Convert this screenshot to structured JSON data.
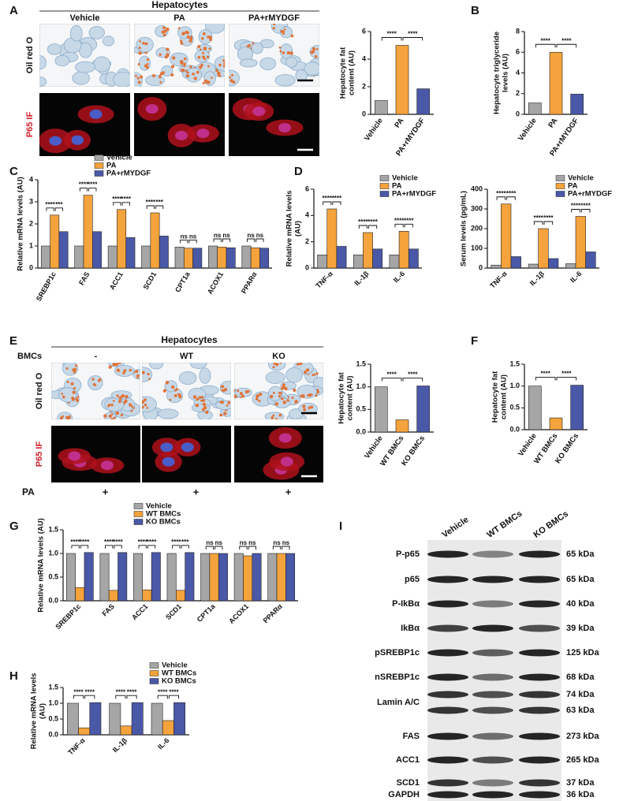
{
  "panel_labels": [
    "A",
    "B",
    "C",
    "D",
    "E",
    "F",
    "G",
    "H",
    "I"
  ],
  "images": [
    {
      "title": "Hepatocytes",
      "columns": [
        "Vehicle",
        "PA",
        "PA+rMYDGF"
      ],
      "rows": [
        "Oil red O",
        "P65 IF"
      ]
    },
    {
      "title": "Hepatocytes",
      "group_label": "BMCs",
      "columns": [
        "-",
        "WT",
        "KO"
      ],
      "rows": [
        "Oil red O",
        "P65 IF"
      ],
      "treatment_label": "PA",
      "treatment": [
        "+",
        "+",
        "+"
      ]
    }
  ],
  "blot": {
    "lanes": [
      "Vehicle",
      "WT BMCs",
      "KO BMCs"
    ],
    "rows": [
      {
        "protein": "P-p65",
        "sizes": [
          "65 kDa"
        ]
      },
      {
        "protein": "p65",
        "sizes": [
          "65 kDa"
        ]
      },
      {
        "protein": "P-IkBα",
        "sizes": [
          "40 kDa"
        ]
      },
      {
        "protein": "IkBα",
        "sizes": [
          "39 kDa"
        ]
      },
      {
        "protein": "pSREBP1c",
        "sizes": [
          "125 kDa"
        ]
      },
      {
        "protein": "nSREBP1c",
        "sizes": [
          "68 kDa"
        ]
      },
      {
        "protein": "Lamin A/C",
        "sizes": [
          "74 kDa",
          "63 kDa"
        ]
      },
      {
        "protein": "FAS",
        "sizes": [
          "273 kDa"
        ]
      },
      {
        "protein": "ACC1",
        "sizes": [
          "265 kDa"
        ]
      },
      {
        "protein": "SCD1",
        "sizes": [
          "37 kDa"
        ]
      },
      {
        "protein": "GAPDH",
        "sizes": [
          "36 kDa"
        ]
      }
    ]
  },
  "chart_data": [
    {
      "type": "bar",
      "ylabel": [
        "Hepatocyte fat",
        "content (AU)"
      ],
      "categories": [
        "Vehicle",
        "PA",
        "PA+rMYDGF"
      ],
      "values": [
        1.0,
        5.0,
        1.85
      ],
      "colors": [
        "#a6a6a6",
        "#f5a33c",
        "#4a58a8"
      ],
      "ylim": [
        0,
        6
      ],
      "yticks": [
        0,
        2,
        4,
        6
      ],
      "annotations": [
        "****",
        "****"
      ]
    },
    {
      "type": "bar",
      "ylabel": [
        "Hepatocyte triglyceride",
        "levels (AU)"
      ],
      "categories": [
        "Vehicle",
        "PA",
        "PA+rMYDGF"
      ],
      "values": [
        1.1,
        6.0,
        1.95
      ],
      "colors": [
        "#a6a6a6",
        "#f5a33c",
        "#4a58a8"
      ],
      "ylim": [
        0,
        8
      ],
      "yticks": [
        0,
        2,
        4,
        6,
        8
      ],
      "annotations": [
        "****",
        "****"
      ]
    },
    {
      "type": "grouped-bar",
      "ylabel": [
        "Relative mRNA levels (AU)"
      ],
      "categories": [
        "SREBP1c",
        "FAS",
        "ACC1",
        "SCD1",
        "CPT1a",
        "ACOX1",
        "PPARα"
      ],
      "series": [
        {
          "name": "Vehicle",
          "color": "#a6a6a6",
          "values": [
            1.0,
            1.0,
            1.0,
            1.0,
            0.95,
            1.0,
            1.0
          ]
        },
        {
          "name": "PA",
          "color": "#f5a33c",
          "values": [
            2.4,
            3.3,
            2.65,
            2.5,
            0.9,
            0.95,
            0.92
          ]
        },
        {
          "name": "PA+rMYDGF",
          "color": "#4a58a8",
          "values": [
            1.65,
            1.65,
            1.38,
            1.45,
            0.9,
            0.92,
            0.9
          ]
        }
      ],
      "ylim": [
        0,
        4
      ],
      "yticks": [
        0,
        1,
        2,
        3,
        4
      ],
      "annotations": [
        [
          "****",
          "***"
        ],
        [
          "****",
          "****"
        ],
        [
          "****",
          "****"
        ],
        [
          "****",
          "***"
        ],
        [
          "ns",
          "ns"
        ],
        [
          "ns",
          "ns"
        ],
        [
          "ns",
          "ns"
        ]
      ]
    },
    {
      "type": "grouped-bar",
      "ylabel": [
        "Relative mRNA levels",
        "(AU)"
      ],
      "categories": [
        "TNF-α",
        "IL-1β",
        "IL-6"
      ],
      "series": [
        {
          "name": "Vehicle",
          "color": "#a6a6a6",
          "values": [
            1.0,
            1.0,
            1.0
          ]
        },
        {
          "name": "PA",
          "color": "#f5a33c",
          "values": [
            4.5,
            2.7,
            2.8
          ]
        },
        {
          "name": "PA+rMYDGF",
          "color": "#4a58a8",
          "values": [
            1.65,
            1.45,
            1.45
          ]
        }
      ],
      "ylim": [
        0,
        6
      ],
      "yticks": [
        0,
        2,
        4,
        6
      ],
      "annotations": [
        [
          "****",
          "****"
        ],
        [
          "****",
          "****"
        ],
        [
          "****",
          "****"
        ]
      ]
    },
    {
      "type": "grouped-bar",
      "ylabel": [
        "Serum levels (pg/mL)"
      ],
      "categories": [
        "TNF-α",
        "IL-1β",
        "IL-6"
      ],
      "series": [
        {
          "name": "Vehicle",
          "color": "#a6a6a6",
          "values": [
            15,
            20,
            22
          ]
        },
        {
          "name": "PA",
          "color": "#f5a33c",
          "values": [
            325,
            200,
            262
          ]
        },
        {
          "name": "PA+rMYDGF",
          "color": "#4a58a8",
          "values": [
            58,
            48,
            82
          ]
        }
      ],
      "ylim": [
        0,
        400
      ],
      "yticks": [
        0,
        100,
        200,
        300,
        400
      ],
      "annotations": [
        [
          "****",
          "****"
        ],
        [
          "****",
          "****"
        ],
        [
          "****",
          "****"
        ]
      ]
    },
    {
      "type": "bar",
      "ylabel": [
        "Hepatocyte fat",
        "content (AU)"
      ],
      "categories": [
        "Vehicle",
        "WT BMCs",
        "KO BMCs"
      ],
      "values": [
        1.0,
        0.27,
        1.02
      ],
      "colors": [
        "#a6a6a6",
        "#f5a33c",
        "#4a58a8"
      ],
      "ylim": [
        0,
        1.5
      ],
      "yticks": [
        {
          "value": 0,
          "label": "0.0"
        },
        0.5,
        {
          "value": 1,
          "label": "1.0"
        },
        1.5
      ],
      "annotations": [
        "****",
        "****"
      ]
    },
    {
      "type": "bar",
      "ylabel": [
        "Hepatocyte fat",
        "content (AU)"
      ],
      "categories": [
        "Vehicle",
        "WT BMCs",
        "KO BMCs"
      ],
      "values": [
        1.0,
        0.27,
        1.02
      ],
      "colors": [
        "#a6a6a6",
        "#f5a33c",
        "#4a58a8"
      ],
      "ylim": [
        0,
        1.5
      ],
      "yticks": [
        {
          "value": 0,
          "label": "0.0"
        },
        0.5,
        {
          "value": 1,
          "label": "1.0"
        },
        1.5
      ],
      "annotations": [
        "****",
        "****"
      ]
    },
    {
      "type": "grouped-bar",
      "ylabel": [
        "Relative mRNA levels (AU)"
      ],
      "categories": [
        "SREBP1c",
        "FAS",
        "ACC1",
        "SCD1",
        "CPT1a",
        "ACOX1",
        "PPARα"
      ],
      "series": [
        {
          "name": "Vehicle",
          "color": "#a6a6a6",
          "values": [
            1.0,
            1.0,
            1.0,
            1.0,
            1.0,
            1.0,
            1.0
          ]
        },
        {
          "name": "WT BMCs",
          "color": "#f5a33c",
          "values": [
            0.28,
            0.22,
            0.23,
            0.22,
            1.0,
            0.95,
            1.0
          ]
        },
        {
          "name": "KO BMCs",
          "color": "#4a58a8",
          "values": [
            1.02,
            1.02,
            1.02,
            1.02,
            1.0,
            1.0,
            1.0
          ]
        }
      ],
      "ylim": [
        0,
        1.5
      ],
      "yticks": [
        {
          "value": 0,
          "label": "0.0"
        },
        0.5,
        {
          "value": 1,
          "label": "1.0"
        },
        1.5
      ],
      "annotations": [
        [
          "****",
          "****"
        ],
        [
          "****",
          "****"
        ],
        [
          "****",
          "****"
        ],
        [
          "****",
          "***"
        ],
        [
          "ns",
          "ns"
        ],
        [
          "ns",
          "ns"
        ],
        [
          "ns",
          "ns"
        ]
      ]
    },
    {
      "type": "grouped-bar",
      "ylabel": [
        "Relative mRNA levels",
        "(AU)"
      ],
      "categories": [
        "TNF-α",
        "IL-1β",
        "IL-6"
      ],
      "series": [
        {
          "name": "Vehicle",
          "color": "#a6a6a6",
          "values": [
            1.0,
            1.0,
            1.0
          ]
        },
        {
          "name": "WT BMCs",
          "color": "#f5a33c",
          "values": [
            0.22,
            0.28,
            0.45
          ]
        },
        {
          "name": "KO BMCs",
          "color": "#4a58a8",
          "values": [
            1.02,
            1.02,
            1.02
          ]
        }
      ],
      "ylim": [
        0,
        1.5
      ],
      "yticks": [
        {
          "value": 0,
          "label": "0.0"
        },
        0.5,
        {
          "value": 1,
          "label": "1.0"
        },
        1.5
      ],
      "annotations": [
        [
          "****",
          "****"
        ],
        [
          "****",
          "****"
        ],
        [
          "****",
          "****"
        ]
      ]
    }
  ]
}
